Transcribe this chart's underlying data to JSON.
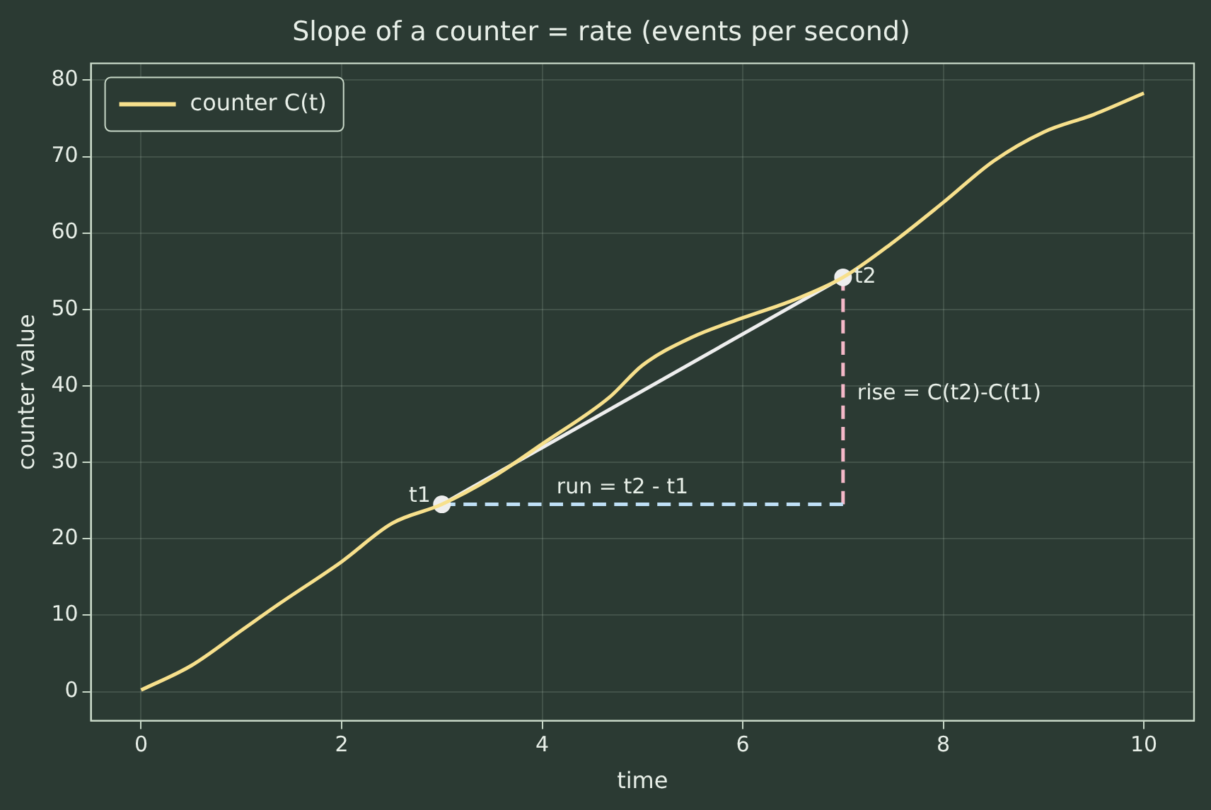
{
  "chart_data": {
    "type": "line",
    "title": "Slope of a counter = rate (events per second)",
    "xlabel": "time",
    "ylabel": "counter value",
    "xlim": [
      -0.5,
      10.5
    ],
    "xticks": [
      0,
      2,
      4,
      6,
      8,
      10
    ],
    "ylim": [
      -3.8,
      82.2
    ],
    "yticks": [
      0,
      10,
      20,
      30,
      40,
      50,
      60,
      70,
      80
    ],
    "grid": true,
    "legend": "top left",
    "series": [
      {
        "name": "counter C(t)",
        "color": "#f7e08c",
        "x": [
          0,
          0.5,
          1,
          1.39,
          2,
          2.5,
          3,
          3.5,
          4,
          4.67,
          5,
          5.5,
          6,
          6.5,
          7,
          7.5,
          8,
          8.5,
          9,
          9.5,
          10
        ],
        "values": [
          0.2,
          3.4,
          8.0,
          11.6,
          17.0,
          22.0,
          24.5,
          28.0,
          32.4,
          38.5,
          42.7,
          46.4,
          48.9,
          51.2,
          54.2,
          58.8,
          64.0,
          69.4,
          73.2,
          75.5,
          78.3
        ],
        "marker": "none",
        "line_style": "solid"
      },
      {
        "color": "#eeeeee",
        "x": [
          3,
          7
        ],
        "values": [
          24.5,
          54.2
        ],
        "marker": "circle",
        "line_style": "solid"
      },
      {
        "color": "#bfe0f7",
        "x": [
          3,
          7
        ],
        "values": [
          24.5,
          24.5
        ],
        "marker": "none",
        "line_style": "dashed"
      },
      {
        "color": "#f4b8c8",
        "x": [
          7,
          7
        ],
        "values": [
          24.5,
          54.2
        ],
        "marker": "none",
        "line_style": "dashed"
      }
    ],
    "annotations": [
      {
        "text": "t1",
        "x": 3,
        "y": 24.5
      },
      {
        "text": "t2",
        "x": 7,
        "y": 54.2
      },
      {
        "text": "run = t2 - t1",
        "x": 4.8,
        "y": 24.5
      },
      {
        "text": "rise = C(t2)-C(t1)",
        "x": 7,
        "y": 39
      }
    ]
  }
}
